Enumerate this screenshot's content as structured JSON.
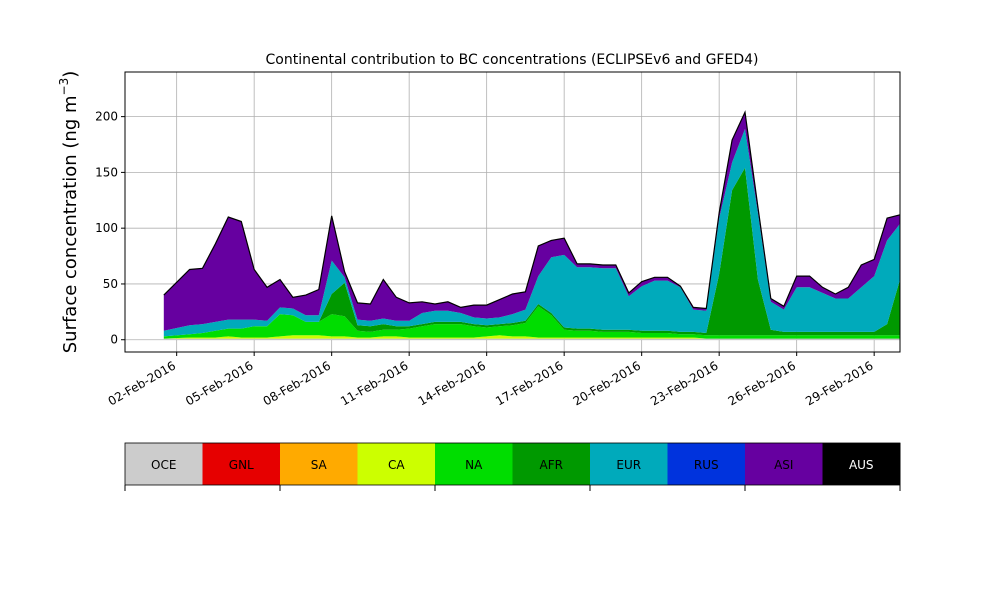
{
  "chart_data": {
    "type": "area",
    "title": "Continental contribution to BC concentrations (ECLIPSEv6 and GFED4)",
    "ylabel": "Surface concentration (ng m",
    "ylabel_exp": "−3",
    "ylabel_close": ")",
    "ylim": [
      -11,
      240
    ],
    "xlim": [
      0.0,
      30.0
    ],
    "grid": true,
    "yticks": [
      0,
      50,
      100,
      150,
      200
    ],
    "xticks": [
      {
        "day": 2,
        "label": "02-Feb-2016"
      },
      {
        "day": 5,
        "label": "05-Feb-2016"
      },
      {
        "day": 8,
        "label": "08-Feb-2016"
      },
      {
        "day": 11,
        "label": "11-Feb-2016"
      },
      {
        "day": 14,
        "label": "14-Feb-2016"
      },
      {
        "day": 17,
        "label": "17-Feb-2016"
      },
      {
        "day": 20,
        "label": "20-Feb-2016"
      },
      {
        "day": 23,
        "label": "23-Feb-2016"
      },
      {
        "day": 26,
        "label": "26-Feb-2016"
      },
      {
        "day": 29,
        "label": "29-Feb-2016"
      }
    ],
    "x": [
      1.5,
      2.5,
      3.0,
      3.5,
      4.0,
      4.5,
      5.0,
      5.5,
      6.0,
      6.5,
      7.0,
      7.5,
      8.0,
      8.5,
      9.0,
      9.5,
      10.0,
      10.5,
      11.0,
      11.5,
      12.0,
      12.5,
      13.0,
      13.5,
      14.0,
      14.5,
      15.0,
      15.5,
      16.0,
      16.5,
      17.0,
      17.5,
      18.0,
      18.5,
      19.0,
      19.5,
      20.0,
      20.5,
      21.0,
      21.5,
      22.0,
      22.5,
      23.0,
      23.5,
      24.0,
      24.5,
      25.0,
      25.5,
      26.0,
      26.5,
      27.0,
      27.5,
      28.0,
      28.5,
      29.0,
      29.5,
      30.0
    ],
    "series": [
      {
        "name": "OCE",
        "color": "#cccccc",
        "values": [
          1,
          1,
          1,
          1,
          1,
          1,
          1,
          1,
          1,
          1,
          1,
          1,
          1,
          1,
          1,
          1,
          1,
          1,
          1,
          1,
          1,
          1,
          1,
          1,
          1,
          1,
          1,
          1,
          1,
          1,
          1,
          1,
          1,
          1,
          1,
          1,
          1,
          1,
          1,
          1,
          1,
          1,
          1,
          1,
          1,
          1,
          1,
          1,
          1,
          1,
          1,
          1,
          1,
          1,
          1,
          1,
          1
        ]
      },
      {
        "name": "GNL",
        "color": "#e60000",
        "values": [
          0,
          0,
          0,
          0,
          0,
          0,
          0,
          0,
          0,
          0,
          0,
          0,
          0,
          0,
          0,
          0,
          0,
          0,
          0,
          0,
          0,
          0,
          0,
          0,
          0,
          0,
          0,
          0,
          0,
          0,
          0,
          0,
          0,
          0,
          0,
          0,
          0,
          0,
          0,
          0,
          0,
          0,
          0,
          0,
          0,
          0,
          0,
          0,
          0,
          0,
          0,
          0,
          0,
          0,
          0,
          0,
          0
        ]
      },
      {
        "name": "SA",
        "color": "#ffaa00",
        "values": [
          0,
          0,
          0,
          0,
          0,
          0,
          0,
          0,
          0,
          0,
          0,
          0,
          0,
          0,
          0,
          0,
          0,
          0,
          0,
          0,
          0,
          0,
          0,
          0,
          0,
          0,
          0,
          0,
          0,
          0,
          0,
          0,
          0,
          0,
          0,
          0,
          0,
          0,
          0,
          0,
          0,
          0,
          0,
          0,
          0,
          0,
          0,
          0,
          0,
          0,
          0,
          0,
          0,
          0,
          0,
          0,
          0
        ]
      },
      {
        "name": "CA",
        "color": "#ccff00",
        "values": [
          0,
          1,
          1,
          1,
          2,
          1,
          1,
          1,
          2,
          3,
          3,
          3,
          2,
          2,
          1,
          1,
          2,
          2,
          1,
          1,
          1,
          1,
          1,
          1,
          2,
          3,
          2,
          2,
          1,
          1,
          1,
          1,
          1,
          1,
          1,
          1,
          1,
          1,
          1,
          1,
          1,
          0,
          0,
          0,
          0,
          0,
          0,
          0,
          0,
          0,
          0,
          0,
          0,
          0,
          0,
          0,
          0
        ]
      },
      {
        "name": "NA",
        "color": "#00dd00",
        "values": [
          2,
          3,
          4,
          6,
          7,
          8,
          10,
          10,
          20,
          18,
          12,
          12,
          20,
          18,
          6,
          5,
          6,
          6,
          8,
          10,
          12,
          12,
          12,
          10,
          8,
          8,
          10,
          12,
          28,
          20,
          7,
          6,
          6,
          5,
          5,
          5,
          4,
          4,
          4,
          3,
          3,
          3,
          3,
          3,
          3,
          3,
          3,
          3,
          3,
          3,
          3,
          3,
          3,
          3,
          3,
          3,
          3
        ]
      },
      {
        "name": "AFR",
        "color": "#009900",
        "values": [
          0,
          0,
          0,
          0,
          0,
          0,
          0,
          0,
          0,
          0,
          0,
          0,
          18,
          30,
          5,
          5,
          5,
          3,
          2,
          2,
          2,
          2,
          2,
          2,
          2,
          2,
          2,
          2,
          2,
          2,
          2,
          2,
          2,
          2,
          2,
          2,
          2,
          2,
          2,
          2,
          2,
          2,
          55,
          130,
          150,
          50,
          5,
          3,
          3,
          3,
          3,
          3,
          3,
          3,
          3,
          10,
          50
        ]
      },
      {
        "name": "EUR",
        "color": "#00aabb",
        "values": [
          5,
          8,
          8,
          8,
          8,
          8,
          6,
          5,
          6,
          6,
          6,
          6,
          30,
          5,
          5,
          5,
          5,
          5,
          5,
          10,
          10,
          10,
          8,
          6,
          6,
          6,
          8,
          10,
          25,
          50,
          65,
          55,
          55,
          55,
          55,
          30,
          40,
          45,
          45,
          40,
          20,
          20,
          50,
          25,
          35,
          60,
          25,
          20,
          40,
          40,
          35,
          30,
          30,
          40,
          50,
          75,
          50
        ]
      },
      {
        "name": "RUS",
        "color": "#0033dd",
        "values": [
          0,
          0,
          0,
          0,
          0,
          0,
          0,
          0,
          0,
          0,
          0,
          0,
          0,
          0,
          0,
          0,
          0,
          0,
          0,
          0,
          0,
          0,
          0,
          0,
          0,
          0,
          0,
          0,
          0,
          0,
          0,
          0,
          0,
          0,
          0,
          0,
          0,
          0,
          0,
          0,
          0,
          0,
          0,
          0,
          0,
          0,
          0,
          0,
          0,
          0,
          0,
          0,
          0,
          0,
          0,
          0,
          0
        ]
      },
      {
        "name": "ASI",
        "color": "#6600a0",
        "values": [
          32,
          50,
          50,
          70,
          92,
          88,
          45,
          30,
          25,
          10,
          18,
          23,
          40,
          5,
          15,
          15,
          35,
          21,
          16,
          10,
          6,
          8,
          5,
          11,
          12,
          16,
          18,
          16,
          27,
          15,
          15,
          3,
          3,
          3,
          3,
          3,
          4,
          3,
          3,
          1,
          2,
          2,
          5,
          20,
          15,
          5,
          3,
          3,
          10,
          10,
          5,
          4,
          10,
          20,
          15,
          20,
          8
        ]
      },
      {
        "name": "AUS",
        "color": "#000000",
        "values": [
          0,
          0,
          0,
          0,
          0,
          0,
          0,
          0,
          0,
          0,
          0,
          0,
          0,
          0,
          0,
          0,
          0,
          0,
          0,
          0,
          0,
          0,
          0,
          0,
          0,
          0,
          0,
          0,
          0,
          0,
          0,
          0,
          0,
          0,
          0,
          0,
          0,
          0,
          0,
          0,
          0,
          0,
          0,
          0,
          0,
          0,
          0,
          0,
          0,
          0,
          0,
          0,
          0,
          0,
          0,
          0,
          0
        ]
      }
    ]
  },
  "colorbar": {
    "labels": [
      "OCE",
      "GNL",
      "SA",
      "CA",
      "NA",
      "AFR",
      "EUR",
      "RUS",
      "ASI",
      "AUS"
    ],
    "colors": [
      "#cccccc",
      "#e60000",
      "#ffaa00",
      "#ccff00",
      "#00dd00",
      "#009900",
      "#00aabb",
      "#0033dd",
      "#6600a0",
      "#000000"
    ],
    "text_colors": [
      "#000000",
      "#000000",
      "#000000",
      "#000000",
      "#000000",
      "#000000",
      "#000000",
      "#000000",
      "#000000",
      "#ffffff"
    ]
  }
}
